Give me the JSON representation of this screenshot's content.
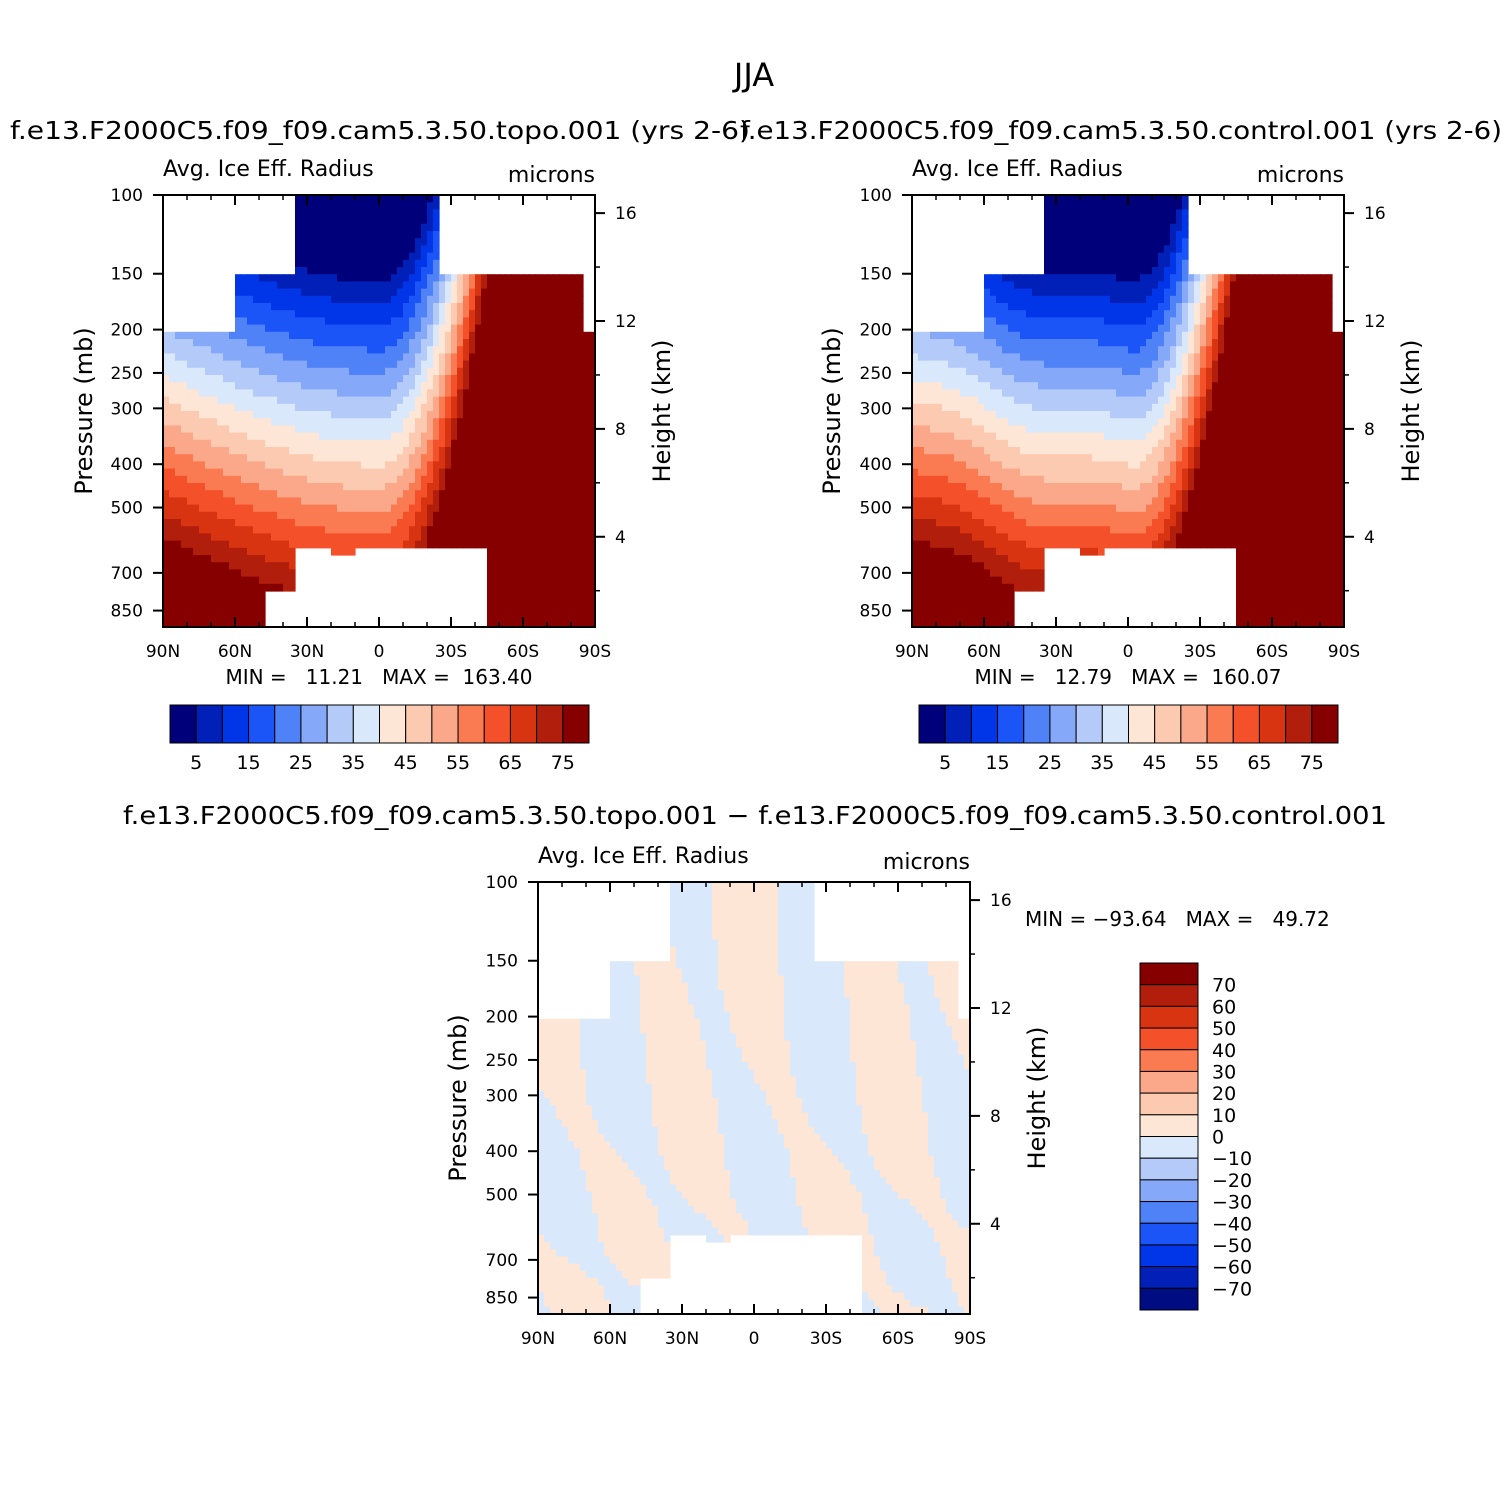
{
  "figure": {
    "title": "JJA"
  },
  "colors": {
    "abs_levels": [
      "#00007a",
      "#0020b8",
      "#0036e8",
      "#1c55f7",
      "#4f82f7",
      "#85a9f8",
      "#b4cbfa",
      "#d9e8fb",
      "#fde6d6",
      "#fccab0",
      "#fba88a",
      "#fa7a52",
      "#f4502a",
      "#d93412",
      "#b21e0c",
      "#870000"
    ],
    "diff_levels": [
      "#000d82",
      "#0020b8",
      "#0036e8",
      "#1c55f7",
      "#4f82f7",
      "#85a9f8",
      "#b4cbfa",
      "#d9e8fb",
      "#fde6d6",
      "#fccab0",
      "#fba88a",
      "#fa7a52",
      "#f4502a",
      "#d93412",
      "#b21e0c",
      "#870000"
    ]
  },
  "chart_data": [
    {
      "type": "heatmap",
      "id": "topo",
      "title": "f.e13.F2000C5.f09_f09.cam5.3.50.topo.001 (yrs 2-6)",
      "left_string": "Avg. Ice Eff. Radius",
      "right_string": "microns",
      "ylabel": "Pressure (mb)",
      "y2label": "Height (km)",
      "x_ticks": [
        "90N",
        "60N",
        "30N",
        "0",
        "30S",
        "60S",
        "90S"
      ],
      "x_range": [
        90,
        -90
      ],
      "y_ticks": [
        100,
        150,
        200,
        250,
        300,
        400,
        500,
        700,
        850
      ],
      "y2_ticks": [
        16,
        12,
        8,
        4
      ],
      "stats_text": "MIN =   11.21   MAX =  163.40",
      "min": 11.21,
      "max": 163.4,
      "colorbar_labels": [
        "5",
        "15",
        "25",
        "35",
        "45",
        "55",
        "65",
        "75"
      ],
      "levels": [
        5,
        10,
        15,
        20,
        25,
        30,
        35,
        40,
        45,
        50,
        55,
        60,
        65,
        70,
        75
      ]
    },
    {
      "type": "heatmap",
      "id": "control",
      "title": "f.e13.F2000C5.f09_f09.cam5.3.50.control.001 (yrs 2-6)",
      "left_string": "Avg. Ice Eff. Radius",
      "right_string": "microns",
      "ylabel": "Pressure (mb)",
      "y2label": "Height (km)",
      "x_ticks": [
        "90N",
        "60N",
        "30N",
        "0",
        "30S",
        "60S",
        "90S"
      ],
      "x_range": [
        90,
        -90
      ],
      "y_ticks": [
        100,
        150,
        200,
        250,
        300,
        400,
        500,
        700,
        850
      ],
      "y2_ticks": [
        16,
        12,
        8,
        4
      ],
      "stats_text": "MIN =   12.79   MAX =  160.07",
      "min": 12.79,
      "max": 160.07,
      "colorbar_labels": [
        "5",
        "15",
        "25",
        "35",
        "45",
        "55",
        "65",
        "75"
      ],
      "levels": [
        5,
        10,
        15,
        20,
        25,
        30,
        35,
        40,
        45,
        50,
        55,
        60,
        65,
        70,
        75
      ]
    },
    {
      "type": "heatmap",
      "id": "diff",
      "title": "f.e13.F2000C5.f09_f09.cam5.3.50.topo.001 − f.e13.F2000C5.f09_f09.cam5.3.50.control.001",
      "left_string": "Avg. Ice Eff. Radius",
      "right_string": "microns",
      "ylabel": "Pressure (mb)",
      "y2label": "Height (km)",
      "x_ticks": [
        "90N",
        "60N",
        "30N",
        "0",
        "30S",
        "60S",
        "90S"
      ],
      "x_range": [
        90,
        -90
      ],
      "y_ticks": [
        100,
        150,
        200,
        250,
        300,
        400,
        500,
        700,
        850
      ],
      "y2_ticks": [
        16,
        12,
        8,
        4
      ],
      "stats_text": "MIN = −93.64   MAX =   49.72",
      "min": -93.64,
      "max": 49.72,
      "colorbar_labels": [
        "70",
        "60",
        "50",
        "40",
        "30",
        "20",
        "10",
        "0",
        "−10",
        "−20",
        "−30",
        "−40",
        "−50",
        "−60",
        "−70"
      ],
      "levels": [
        -70,
        -60,
        -50,
        -40,
        -30,
        -20,
        -10,
        0,
        10,
        20,
        30,
        40,
        50,
        60,
        70
      ]
    }
  ]
}
